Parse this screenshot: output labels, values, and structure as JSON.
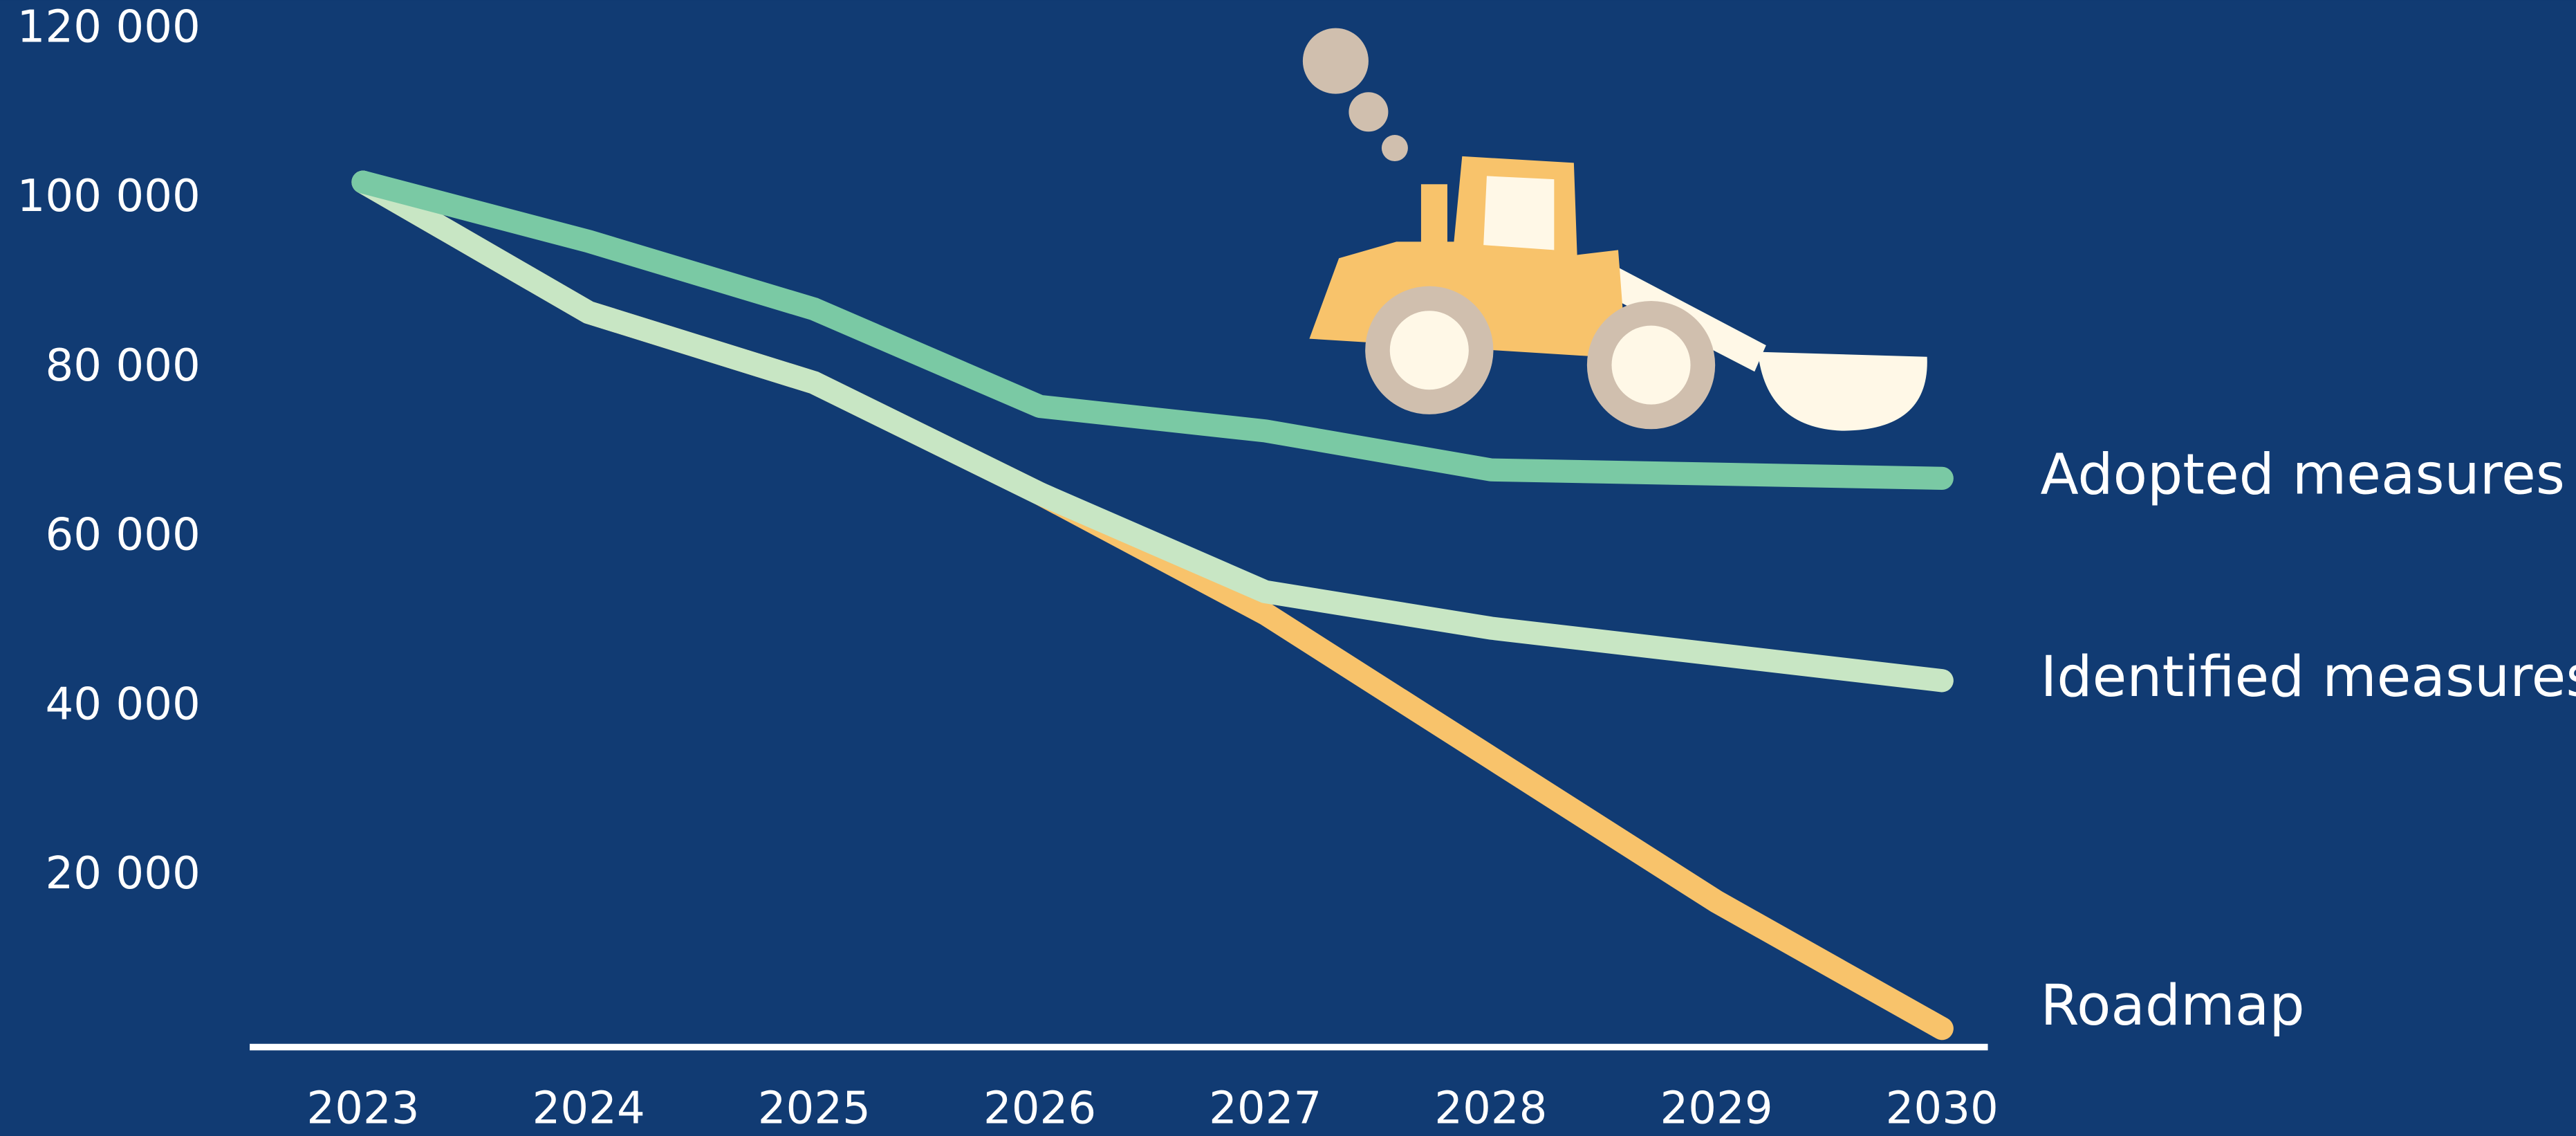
{
  "chart_data": {
    "type": "line",
    "categories": [
      "2023",
      "2024",
      "2025",
      "2026",
      "2027",
      "2028",
      "2029",
      "2030"
    ],
    "series": [
      {
        "name": "Roadmap",
        "color": "#f8c36b",
        "values": [
          102000,
          86600,
          78300,
          65200,
          51000,
          34000,
          17000,
          2000
        ]
      },
      {
        "name": "Identified measures",
        "color": "#c8e6c4",
        "values": [
          102000,
          86600,
          78300,
          65200,
          53600,
          49300,
          46200,
          43100
        ]
      },
      {
        "name": "Adopted measures",
        "color": "#7ac9a4",
        "values": [
          102000,
          95000,
          87000,
          75500,
          72600,
          68000,
          67500,
          67000
        ]
      }
    ],
    "ylim": [
      0,
      120000
    ],
    "yticks": [
      {
        "value": 20000,
        "label": "20 000"
      },
      {
        "value": 40000,
        "label": "40 000"
      },
      {
        "value": 60000,
        "label": "60 000"
      },
      {
        "value": 80000,
        "label": "80 000"
      },
      {
        "value": 100000,
        "label": "100 000"
      },
      {
        "value": 120000,
        "label": "120 000"
      }
    ]
  }
}
